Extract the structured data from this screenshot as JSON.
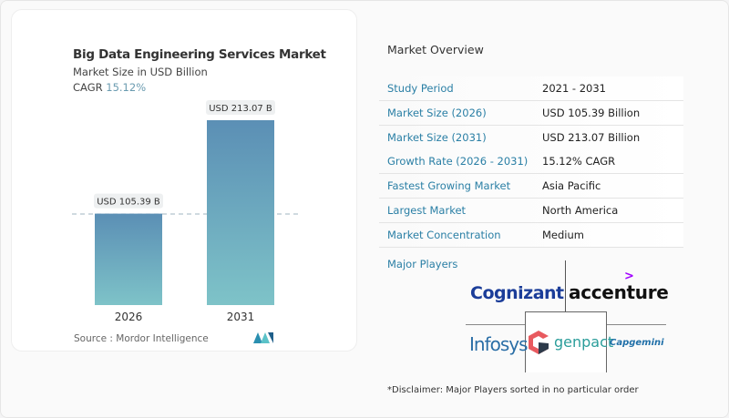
{
  "chart_data": {
    "type": "bar",
    "title": "Big Data Engineering Services Market",
    "subtitle": "Market Size in USD Billion",
    "cagr_label": "CAGR",
    "cagr_value": "15.12%",
    "categories": [
      "2026",
      "2031"
    ],
    "values": [
      105.39,
      213.07
    ],
    "data_labels": [
      "USD 105.39 B",
      "USD 213.07 B"
    ],
    "colors": {
      "bar_top": "#5b8fb5",
      "bar_bottom": "#7ec3c8"
    },
    "source": "Source :  Mordor Intelligence"
  },
  "overview": {
    "heading": "Market Overview",
    "rows": [
      {
        "label": "Study Period",
        "value": "2021 - 2031"
      },
      {
        "label": "Market Size (2026)",
        "value": "USD 105.39 Billion"
      },
      {
        "label": "Market Size (2031)",
        "value": "USD 213.07 Billion"
      },
      {
        "label": "Growth Rate (2026 - 2031)",
        "value": "15.12% CAGR"
      },
      {
        "label": "Fastest Growing Market",
        "value": "Asia Pacific"
      },
      {
        "label": "Largest Market",
        "value": "North America"
      },
      {
        "label": "Market Concentration",
        "value": "Medium"
      }
    ],
    "major_players_label": "Major Players",
    "players": [
      "Cognizant",
      "accenture",
      "Infosys",
      "genpact",
      "Capgemini"
    ],
    "disclaimer": "*Disclaimer: Major Players sorted in no particular order"
  }
}
